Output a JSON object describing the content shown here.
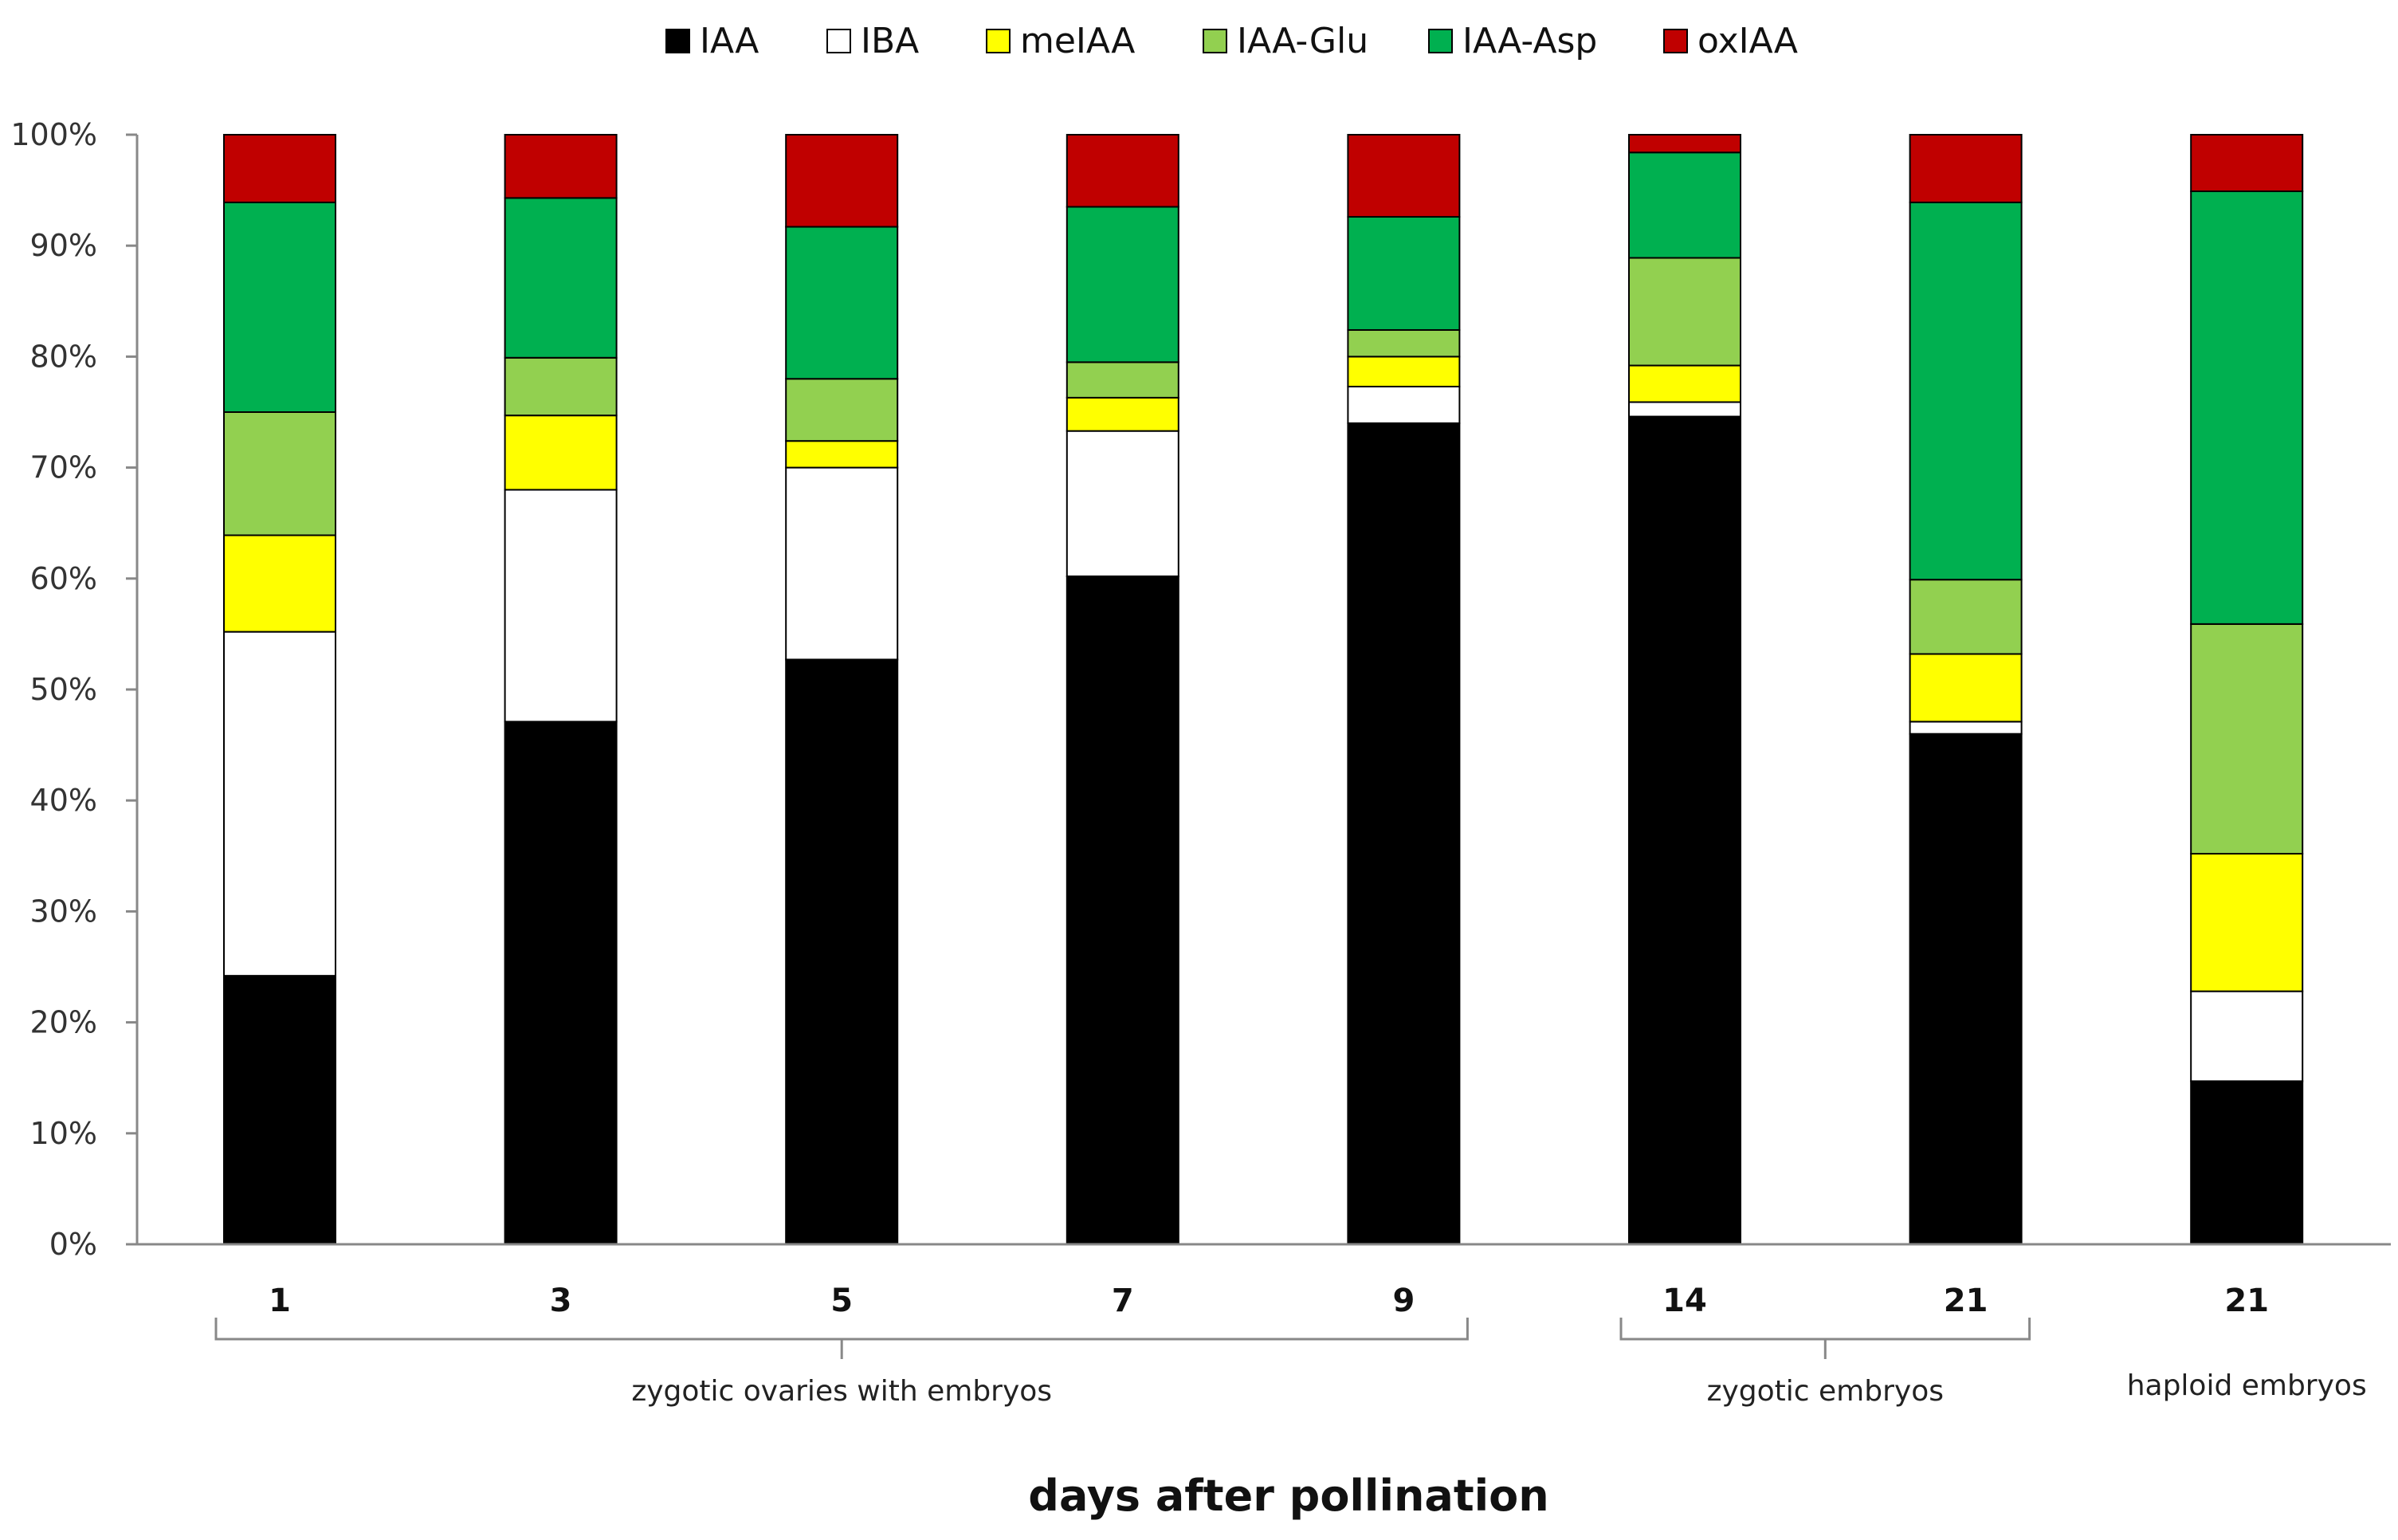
{
  "chart_data": {
    "type": "bar",
    "stacked": true,
    "normalized": true,
    "categories": [
      "1",
      "3",
      "5",
      "7",
      "9",
      "14",
      "21",
      "21"
    ],
    "groups": [
      {
        "label": "zygotic ovaries with embryos",
        "from": 0,
        "to": 4
      },
      {
        "label": "zygotic embryos",
        "from": 5,
        "to": 6
      },
      {
        "label": "haploid embryos",
        "from": 7,
        "to": 7
      }
    ],
    "series": [
      {
        "name": "IAA",
        "color": "#000000",
        "values": [
          24.2,
          47.1,
          52.7,
          60.2,
          74.0,
          74.6,
          46.0,
          14.7
        ]
      },
      {
        "name": "IBA",
        "color": "#ffffff",
        "values": [
          31.0,
          20.9,
          17.3,
          13.1,
          3.3,
          1.3,
          1.1,
          8.1
        ]
      },
      {
        "name": "meIAA",
        "color": "#ffff00",
        "values": [
          8.7,
          6.7,
          2.4,
          3.0,
          2.7,
          3.3,
          6.1,
          12.4
        ]
      },
      {
        "name": "IAA-Glu",
        "color": "#92d050",
        "values": [
          11.1,
          5.2,
          5.6,
          3.2,
          2.4,
          9.7,
          6.7,
          20.7
        ]
      },
      {
        "name": "IAA-Asp",
        "color": "#00b050",
        "values": [
          18.9,
          14.4,
          13.7,
          14.0,
          10.2,
          9.5,
          34.0,
          39.0
        ]
      },
      {
        "name": "oxIAA",
        "color": "#c00000",
        "values": [
          6.1,
          5.7,
          8.3,
          6.5,
          7.4,
          1.6,
          6.1,
          5.1
        ]
      }
    ],
    "yticks": [
      "0%",
      "10%",
      "20%",
      "30%",
      "40%",
      "50%",
      "60%",
      "70%",
      "80%",
      "90%",
      "100%"
    ],
    "ylim": [
      0,
      100
    ],
    "xlabel": "days after pollination",
    "ylabel": "",
    "legend_position": "top"
  }
}
